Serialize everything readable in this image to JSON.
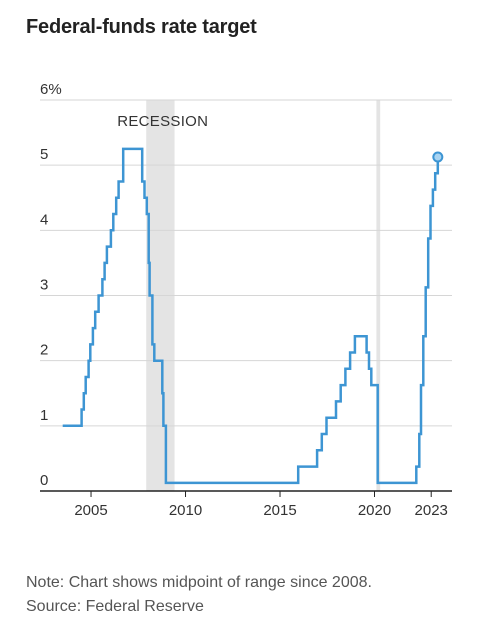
{
  "title": "Federal-funds rate target",
  "note": "Note: Chart shows midpoint of range since 2008.",
  "source": "Source: Federal Reserve",
  "colors": {
    "line": "#3d95d3",
    "recession": "#e4e4e4",
    "grid": "#d6d6d6",
    "axis": "#222222"
  },
  "chart_data": {
    "type": "line",
    "title": "Federal-funds rate target",
    "ylim": [
      0,
      6
    ],
    "xlim": [
      2002.3,
      2024.1
    ],
    "y_ticks": [
      {
        "value": 0,
        "label": "0"
      },
      {
        "value": 1,
        "label": "1"
      },
      {
        "value": 2,
        "label": "2"
      },
      {
        "value": 3,
        "label": "3"
      },
      {
        "value": 4,
        "label": "4"
      },
      {
        "value": 5,
        "label": "5"
      },
      {
        "value": 6,
        "label": "6%"
      }
    ],
    "x_ticks": [
      {
        "value": 2005,
        "label": "2005"
      },
      {
        "value": 2010,
        "label": "2010"
      },
      {
        "value": 2015,
        "label": "2015"
      },
      {
        "value": 2020,
        "label": "2020"
      },
      {
        "value": 2023,
        "label": "2023"
      }
    ],
    "grid": true,
    "recessions": [
      {
        "start": 2007.92,
        "end": 2009.42,
        "label": "RECESSION"
      },
      {
        "start": 2020.1,
        "end": 2020.3,
        "label": ""
      }
    ],
    "series": [
      {
        "step": true,
        "end_marker": true,
        "points": [
          [
            2003.5,
            1.0
          ],
          [
            2004.5,
            1.25
          ],
          [
            2004.62,
            1.5
          ],
          [
            2004.72,
            1.75
          ],
          [
            2004.87,
            2.0
          ],
          [
            2004.96,
            2.25
          ],
          [
            2005.1,
            2.5
          ],
          [
            2005.22,
            2.75
          ],
          [
            2005.4,
            3.0
          ],
          [
            2005.6,
            3.25
          ],
          [
            2005.72,
            3.5
          ],
          [
            2005.84,
            3.75
          ],
          [
            2006.05,
            4.0
          ],
          [
            2006.18,
            4.25
          ],
          [
            2006.33,
            4.5
          ],
          [
            2006.46,
            4.75
          ],
          [
            2006.7,
            5.25
          ],
          [
            2007.71,
            4.75
          ],
          [
            2007.83,
            4.5
          ],
          [
            2007.95,
            4.25
          ],
          [
            2008.05,
            3.5
          ],
          [
            2008.1,
            3.0
          ],
          [
            2008.25,
            2.25
          ],
          [
            2008.35,
            2.0
          ],
          [
            2008.77,
            1.5
          ],
          [
            2008.83,
            1.0
          ],
          [
            2008.96,
            0.125
          ],
          [
            2015.96,
            0.375
          ],
          [
            2016.96,
            0.625
          ],
          [
            2017.21,
            0.875
          ],
          [
            2017.46,
            1.125
          ],
          [
            2017.96,
            1.375
          ],
          [
            2018.21,
            1.625
          ],
          [
            2018.46,
            1.875
          ],
          [
            2018.71,
            2.125
          ],
          [
            2018.96,
            2.375
          ],
          [
            2019.58,
            2.125
          ],
          [
            2019.71,
            1.875
          ],
          [
            2019.83,
            1.625
          ],
          [
            2020.17,
            0.125
          ],
          [
            2022.21,
            0.375
          ],
          [
            2022.37,
            0.875
          ],
          [
            2022.46,
            1.625
          ],
          [
            2022.58,
            2.375
          ],
          [
            2022.71,
            3.125
          ],
          [
            2022.84,
            3.875
          ],
          [
            2022.96,
            4.375
          ],
          [
            2023.09,
            4.625
          ],
          [
            2023.21,
            4.875
          ],
          [
            2023.35,
            5.125
          ]
        ]
      }
    ]
  }
}
